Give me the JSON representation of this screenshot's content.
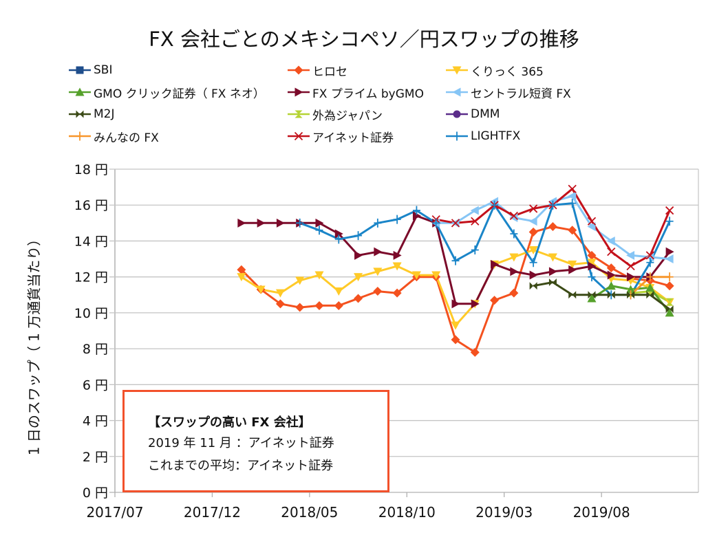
{
  "chart_data": {
    "type": "line",
    "title": "FX 会社ごとのメキシコペソ／円スワップの推移",
    "xlabel": "",
    "ylabel": "1 日のスワップ（ 1 万通貨当たり）",
    "ylim": [
      0,
      18
    ],
    "y_ticks": [
      0,
      2,
      4,
      6,
      8,
      10,
      12,
      14,
      16,
      18
    ],
    "y_tick_suffix": " 円",
    "x_ticks": [
      "2017/07",
      "2017/12",
      "2018/05",
      "2018/10",
      "2019/03",
      "2019/08"
    ],
    "x_range": [
      "2017/07",
      "2019/12"
    ],
    "grid": "horizontal",
    "legend_position": "top",
    "x": [
      "2018/01",
      "2018/02",
      "2018/03",
      "2018/04",
      "2018/05",
      "2018/06",
      "2018/07",
      "2018/08",
      "2018/09",
      "2018/10",
      "2018/11",
      "2018/12",
      "2019/01",
      "2019/02",
      "2019/03",
      "2019/04",
      "2019/05",
      "2019/06",
      "2019/07",
      "2019/08",
      "2019/09",
      "2019/10",
      "2019/11"
    ],
    "series": [
      {
        "name": "SBI",
        "color": "#1f4e8c",
        "marker": "square",
        "values": [
          null,
          null,
          null,
          null,
          null,
          null,
          null,
          null,
          null,
          null,
          null,
          null,
          null,
          null,
          null,
          null,
          null,
          null,
          null,
          null,
          null,
          null,
          null
        ]
      },
      {
        "name": "ヒロセ",
        "color": "#f4511e",
        "marker": "diamond",
        "values": [
          12.4,
          11.3,
          10.5,
          10.3,
          10.4,
          10.4,
          10.8,
          11.2,
          11.1,
          12.0,
          12.0,
          8.5,
          7.8,
          10.7,
          11.1,
          14.5,
          14.8,
          14.6,
          13.2,
          12.5,
          11.9,
          11.8,
          11.5
        ]
      },
      {
        "name": "くりっく 365",
        "color": "#ffca28",
        "marker": "triangle-down",
        "values": [
          12.0,
          11.3,
          11.1,
          11.8,
          12.1,
          11.2,
          12.0,
          12.3,
          12.6,
          12.1,
          12.1,
          9.3,
          10.5,
          12.7,
          13.1,
          13.5,
          13.1,
          12.7,
          12.8,
          11.9,
          11.8,
          11.4,
          10.6
        ]
      },
      {
        "name": "GMO クリック証券（ FX ネオ）",
        "color": "#56a12c",
        "marker": "triangle-up",
        "values": [
          null,
          null,
          null,
          null,
          null,
          null,
          null,
          null,
          null,
          null,
          null,
          null,
          null,
          null,
          null,
          null,
          null,
          null,
          10.8,
          11.5,
          11.3,
          11.4,
          10.0
        ]
      },
      {
        "name": "FX プライム byGMO",
        "color": "#7b0a2a",
        "marker": "triangle-right",
        "values": [
          15.0,
          15.0,
          15.0,
          15.0,
          15.0,
          14.4,
          13.2,
          13.4,
          13.2,
          15.4,
          15.0,
          10.5,
          10.5,
          12.7,
          12.3,
          12.1,
          12.3,
          12.4,
          12.6,
          12.1,
          12.0,
          12.0,
          13.4
        ]
      },
      {
        "name": "セントラル短資 FX",
        "color": "#86c5f5",
        "marker": "triangle-left",
        "values": [
          null,
          null,
          null,
          null,
          null,
          null,
          null,
          null,
          null,
          null,
          15.0,
          15.0,
          15.7,
          16.2,
          15.3,
          15.1,
          16.2,
          16.5,
          14.8,
          14.0,
          13.2,
          13.1,
          13.0
        ]
      },
      {
        "name": "M2J",
        "color": "#3b4a16",
        "marker": "bowtie",
        "values": [
          null,
          null,
          null,
          null,
          null,
          null,
          null,
          null,
          null,
          null,
          null,
          null,
          null,
          null,
          null,
          11.5,
          11.7,
          11.0,
          11.0,
          11.0,
          11.0,
          11.0,
          10.2
        ]
      },
      {
        "name": "外為ジャパン",
        "color": "#b5d334",
        "marker": "hourglass",
        "values": [
          null,
          null,
          null,
          null,
          null,
          null,
          null,
          null,
          null,
          null,
          null,
          null,
          null,
          null,
          null,
          null,
          null,
          null,
          null,
          null,
          11.1,
          11.2,
          10.6
        ]
      },
      {
        "name": "DMM",
        "color": "#5b2d8a",
        "marker": "circle",
        "values": [
          null,
          null,
          null,
          null,
          null,
          null,
          null,
          null,
          null,
          null,
          null,
          null,
          null,
          null,
          null,
          null,
          null,
          null,
          null,
          null,
          null,
          null,
          null
        ]
      },
      {
        "name": "みんなの FX",
        "color": "#f7962b",
        "marker": "plus",
        "values": [
          null,
          null,
          null,
          null,
          null,
          null,
          null,
          null,
          null,
          null,
          null,
          null,
          null,
          null,
          null,
          null,
          null,
          null,
          null,
          null,
          11.0,
          12.0,
          12.0
        ]
      },
      {
        "name": "アイネット証券",
        "color": "#c3111b",
        "marker": "x",
        "values": [
          null,
          null,
          null,
          null,
          null,
          null,
          null,
          null,
          null,
          null,
          15.2,
          15.0,
          15.1,
          16.0,
          15.4,
          15.8,
          16.0,
          16.9,
          15.1,
          13.4,
          12.6,
          13.2,
          15.7
        ]
      },
      {
        "name": "LIGHTFX",
        "color": "#1a85c8",
        "marker": "plus",
        "values": [
          null,
          null,
          null,
          15.0,
          14.6,
          14.1,
          14.3,
          15.0,
          15.2,
          15.7,
          15.0,
          12.9,
          13.5,
          16.0,
          14.4,
          12.8,
          16.0,
          16.1,
          12.0,
          11.0,
          11.0,
          12.8,
          15.1
        ]
      }
    ],
    "annotations": [
      {
        "title": "【スワップの高い FX 会社】",
        "lines": [
          "2019 年 11 月 ：アイネット証券",
          "これまでの平均：アイネット証券"
        ],
        "border_color": "#f2512b"
      }
    ]
  },
  "legend_layout_order": [
    "SBI",
    "ヒロセ",
    "くりっく 365",
    "GMO クリック証券（ FX ネオ）",
    "FX プライム byGMO",
    "セントラル短資 FX",
    "M2J",
    "外為ジャパン",
    "DMM",
    "みんなの FX",
    "アイネット証券",
    "LIGHTFX"
  ]
}
